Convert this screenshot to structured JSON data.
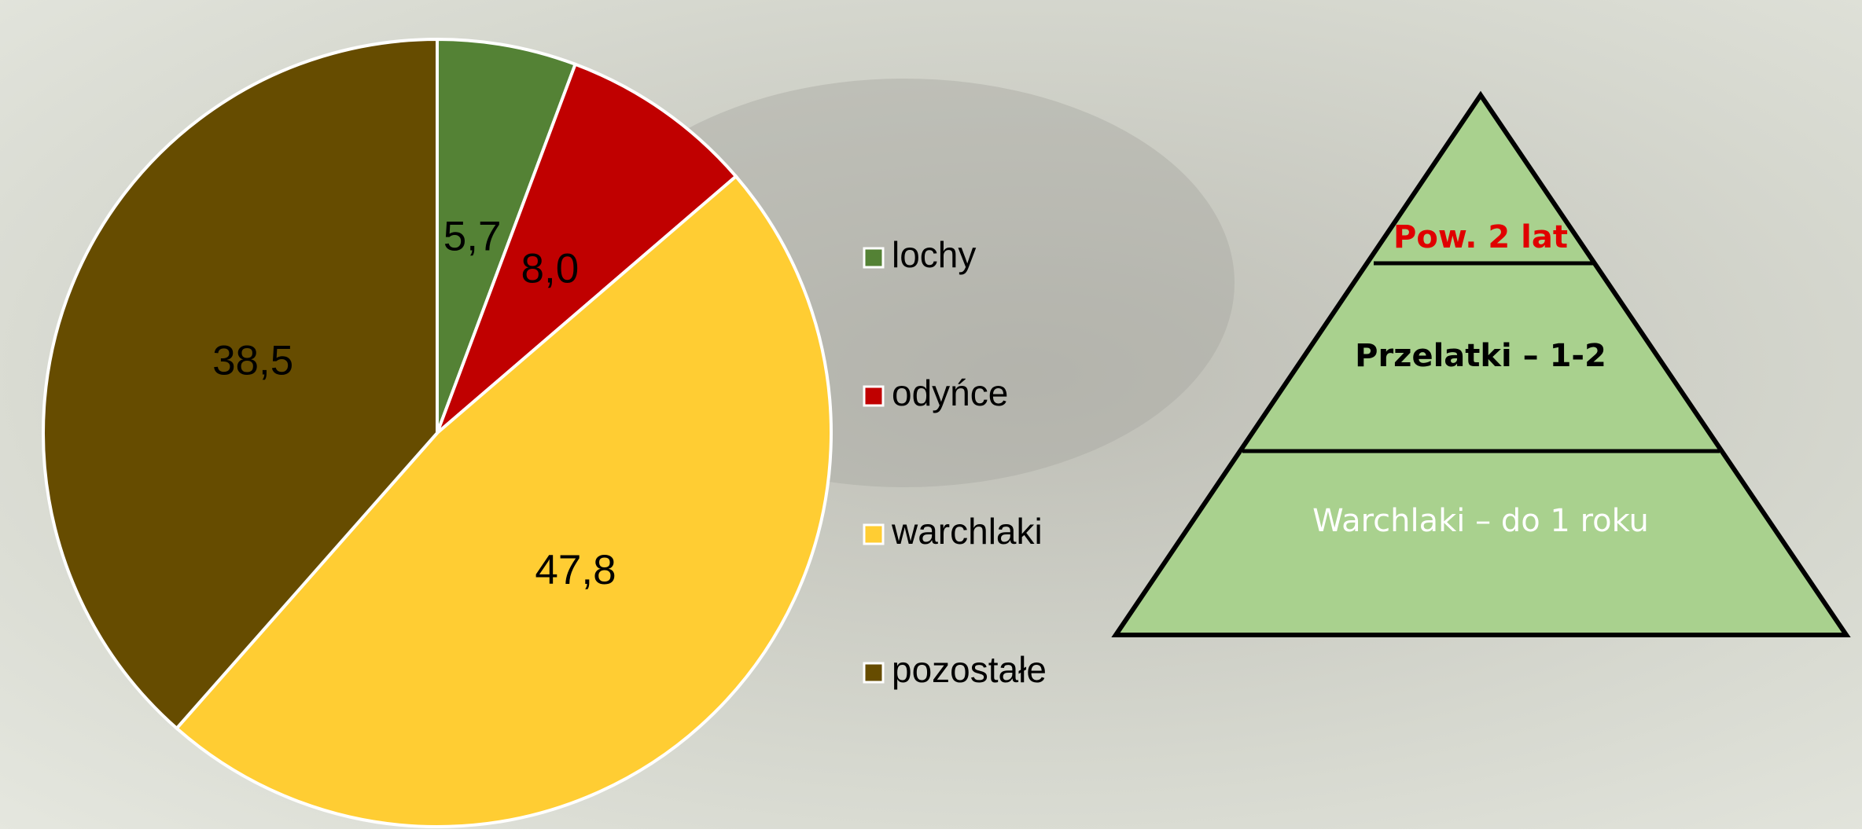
{
  "chart_data": {
    "type": "pie",
    "categories": [
      "lochy",
      "odyńce",
      "warchlaki",
      "pozostałe"
    ],
    "values": [
      5.7,
      8.0,
      47.8,
      38.5
    ],
    "value_labels": [
      "5,7",
      "8,0",
      "47,8",
      "38,5"
    ],
    "colors": [
      "#548235",
      "#c00000",
      "#ffcd33",
      "#664c00"
    ],
    "legend": "right"
  },
  "pyramid": {
    "levels": [
      "Pow. 2 lat",
      "Przelatki – 1-2",
      "Warchlaki – do 1 roku"
    ]
  }
}
